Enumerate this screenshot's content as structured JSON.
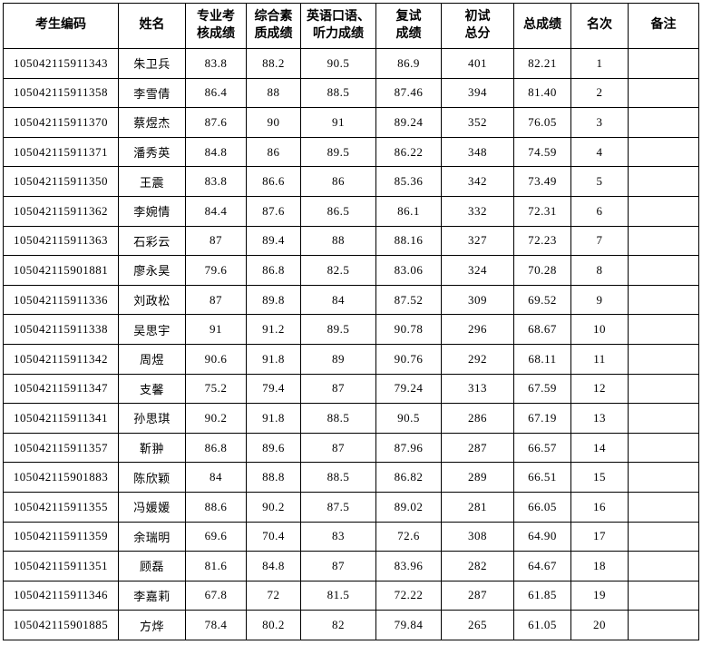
{
  "table": {
    "headers": [
      "考生编码",
      "姓名",
      "专业考\n核成绩",
      "综合素\n质成绩",
      "英语口语、\n听力成绩",
      "复试\n成绩",
      "初试\n总分",
      "总成绩",
      "名次",
      "备注"
    ],
    "rows": [
      [
        "105042115911343",
        "朱卫兵",
        "83.8",
        "88.2",
        "90.5",
        "86.9",
        "401",
        "82.21",
        "1",
        ""
      ],
      [
        "105042115911358",
        "李雪倩",
        "86.4",
        "88",
        "88.5",
        "87.46",
        "394",
        "81.40",
        "2",
        ""
      ],
      [
        "105042115911370",
        "蔡煜杰",
        "87.6",
        "90",
        "91",
        "89.24",
        "352",
        "76.05",
        "3",
        ""
      ],
      [
        "105042115911371",
        "潘秀英",
        "84.8",
        "86",
        "89.5",
        "86.22",
        "348",
        "74.59",
        "4",
        ""
      ],
      [
        "105042115911350",
        "王震",
        "83.8",
        "86.6",
        "86",
        "85.36",
        "342",
        "73.49",
        "5",
        ""
      ],
      [
        "105042115911362",
        "李婉情",
        "84.4",
        "87.6",
        "86.5",
        "86.1",
        "332",
        "72.31",
        "6",
        ""
      ],
      [
        "105042115911363",
        "石彩云",
        "87",
        "89.4",
        "88",
        "88.16",
        "327",
        "72.23",
        "7",
        ""
      ],
      [
        "105042115901881",
        "廖永昊",
        "79.6",
        "86.8",
        "82.5",
        "83.06",
        "324",
        "70.28",
        "8",
        ""
      ],
      [
        "105042115911336",
        "刘政松",
        "87",
        "89.8",
        "84",
        "87.52",
        "309",
        "69.52",
        "9",
        ""
      ],
      [
        "105042115911338",
        "吴思宇",
        "91",
        "91.2",
        "89.5",
        "90.78",
        "296",
        "68.67",
        "10",
        ""
      ],
      [
        "105042115911342",
        "周煜",
        "90.6",
        "91.8",
        "89",
        "90.76",
        "292",
        "68.11",
        "11",
        ""
      ],
      [
        "105042115911347",
        "支馨",
        "75.2",
        "79.4",
        "87",
        "79.24",
        "313",
        "67.59",
        "12",
        ""
      ],
      [
        "105042115911341",
        "孙思琪",
        "90.2",
        "91.8",
        "88.5",
        "90.5",
        "286",
        "67.19",
        "13",
        ""
      ],
      [
        "105042115911357",
        "靳翀",
        "86.8",
        "89.6",
        "87",
        "87.96",
        "287",
        "66.57",
        "14",
        ""
      ],
      [
        "105042115901883",
        "陈欣颖",
        "84",
        "88.8",
        "88.5",
        "86.82",
        "289",
        "66.51",
        "15",
        ""
      ],
      [
        "105042115911355",
        "冯媛媛",
        "88.6",
        "90.2",
        "87.5",
        "89.02",
        "281",
        "66.05",
        "16",
        ""
      ],
      [
        "105042115911359",
        "余瑞明",
        "69.6",
        "70.4",
        "83",
        "72.6",
        "308",
        "64.90",
        "17",
        ""
      ],
      [
        "105042115911351",
        "顾磊",
        "81.6",
        "84.8",
        "87",
        "83.96",
        "282",
        "64.67",
        "18",
        ""
      ],
      [
        "105042115911346",
        "李嘉莉",
        "67.8",
        "72",
        "81.5",
        "72.22",
        "287",
        "61.85",
        "19",
        ""
      ],
      [
        "105042115901885",
        "方烨",
        "78.4",
        "80.2",
        "82",
        "79.84",
        "265",
        "61.05",
        "20",
        ""
      ]
    ]
  }
}
